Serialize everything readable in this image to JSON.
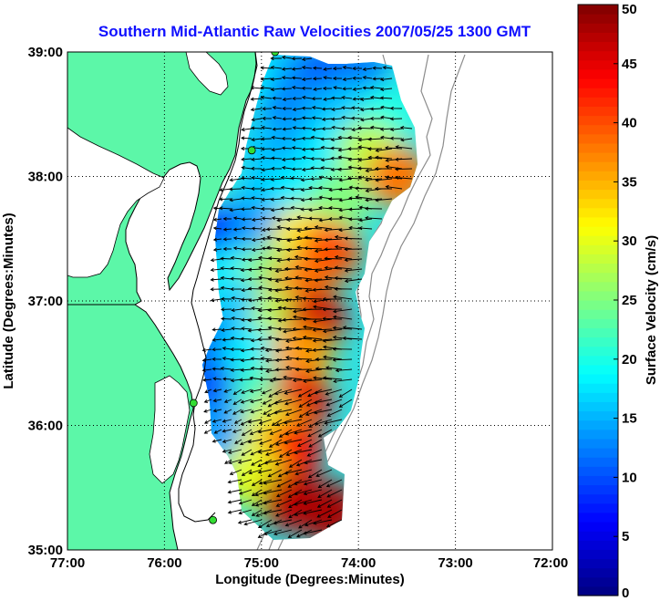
{
  "chart_data": {
    "type": "heatmap",
    "title": "Southern Mid-Atlantic Raw Velocities 2007/05/25 1300 GMT",
    "xlabel": "Longitude (Degrees:Minutes)",
    "ylabel": "Latitude (Degrees:Minutes)",
    "xlim": [
      -77,
      -72
    ],
    "ylim": [
      35,
      39
    ],
    "x_ticks": [
      "77:00",
      "76:00",
      "75:00",
      "74:00",
      "73:00",
      "72:00"
    ],
    "y_ticks": [
      "35:00",
      "36:00",
      "37:00",
      "38:00",
      "39:00"
    ],
    "grid": "dotted",
    "colorbar": {
      "label": "Surface Velocity (cm/s)",
      "range": [
        0,
        50
      ],
      "ticks": [
        "0",
        "5",
        "10",
        "15",
        "20",
        "25",
        "30",
        "35",
        "40",
        "45",
        "50"
      ],
      "colormap": "jet"
    },
    "colors": {
      "land": "#5cf7a8",
      "title": "#1010ff",
      "coastline": "#000000",
      "bathymetry": "#8c8c8c",
      "station": "#33dd33"
    },
    "stations": [
      {
        "lon": -74.86,
        "lat": 39.0
      },
      {
        "lon": -75.1,
        "lat": 38.21
      },
      {
        "lon": -75.7,
        "lat": 36.18
      },
      {
        "lon": -75.5,
        "lat": 35.24
      }
    ],
    "velocity_field": [
      {
        "lon": -74.9,
        "lat": 38.8,
        "v": 18
      },
      {
        "lon": -74.6,
        "lat": 38.8,
        "v": 14
      },
      {
        "lon": -74.3,
        "lat": 38.8,
        "v": 10
      },
      {
        "lon": -74.0,
        "lat": 38.8,
        "v": 12
      },
      {
        "lon": -74.7,
        "lat": 38.5,
        "v": 12
      },
      {
        "lon": -74.4,
        "lat": 38.5,
        "v": 14
      },
      {
        "lon": -74.1,
        "lat": 38.5,
        "v": 16
      },
      {
        "lon": -73.7,
        "lat": 38.5,
        "v": 20
      },
      {
        "lon": -74.9,
        "lat": 38.2,
        "v": 16
      },
      {
        "lon": -74.6,
        "lat": 38.2,
        "v": 14
      },
      {
        "lon": -74.3,
        "lat": 38.2,
        "v": 18
      },
      {
        "lon": -73.9,
        "lat": 38.2,
        "v": 28
      },
      {
        "lon": -73.6,
        "lat": 38.0,
        "v": 38
      },
      {
        "lon": -75.3,
        "lat": 37.9,
        "v": 22
      },
      {
        "lon": -75.0,
        "lat": 37.9,
        "v": 16
      },
      {
        "lon": -74.6,
        "lat": 37.9,
        "v": 18
      },
      {
        "lon": -74.2,
        "lat": 37.8,
        "v": 25
      },
      {
        "lon": -75.4,
        "lat": 37.55,
        "v": 8
      },
      {
        "lon": -75.0,
        "lat": 37.55,
        "v": 14
      },
      {
        "lon": -74.6,
        "lat": 37.5,
        "v": 32
      },
      {
        "lon": -74.3,
        "lat": 37.4,
        "v": 40
      },
      {
        "lon": -75.3,
        "lat": 37.2,
        "v": 18
      },
      {
        "lon": -74.9,
        "lat": 37.2,
        "v": 26
      },
      {
        "lon": -74.6,
        "lat": 37.1,
        "v": 38
      },
      {
        "lon": -75.2,
        "lat": 36.9,
        "v": 16
      },
      {
        "lon": -74.8,
        "lat": 36.85,
        "v": 28
      },
      {
        "lon": -74.45,
        "lat": 36.85,
        "v": 46
      },
      {
        "lon": -75.5,
        "lat": 36.6,
        "v": 12
      },
      {
        "lon": -75.1,
        "lat": 36.55,
        "v": 18
      },
      {
        "lon": -74.6,
        "lat": 36.55,
        "v": 36
      },
      {
        "lon": -75.5,
        "lat": 36.25,
        "v": 10
      },
      {
        "lon": -75.0,
        "lat": 36.25,
        "v": 22
      },
      {
        "lon": -74.6,
        "lat": 36.2,
        "v": 45
      },
      {
        "lon": -75.4,
        "lat": 35.95,
        "v": 14
      },
      {
        "lon": -74.9,
        "lat": 35.95,
        "v": 30
      },
      {
        "lon": -74.7,
        "lat": 35.8,
        "v": 44
      },
      {
        "lon": -75.1,
        "lat": 35.6,
        "v": 30
      },
      {
        "lon": -74.7,
        "lat": 35.4,
        "v": 47
      },
      {
        "lon": -74.3,
        "lat": 35.3,
        "v": 48
      }
    ]
  }
}
